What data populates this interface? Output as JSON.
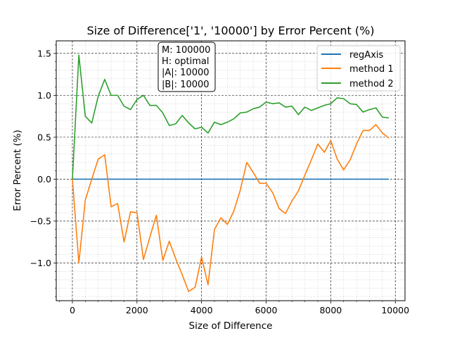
{
  "chart_data": {
    "type": "line",
    "title": "Size of Difference['1', '10000'] by Error Percent (%)",
    "xlabel": "Size of Difference",
    "ylabel": "Error Percent (%)",
    "xlim": [
      -500,
      10300
    ],
    "ylim": [
      -1.45,
      1.65
    ],
    "xticks": [
      0,
      2000,
      4000,
      6000,
      8000,
      10000
    ],
    "yticks": [
      -1.0,
      -0.5,
      0.0,
      0.5,
      1.0,
      1.5
    ],
    "xtick_labels": [
      "0",
      "2000",
      "4000",
      "6000",
      "8000",
      "10000"
    ],
    "ytick_labels": [
      "−1.0",
      "−0.5",
      "0.0",
      "0.5",
      "1.0",
      "1.5"
    ],
    "grid": true,
    "legend_position": "top-right",
    "annotation": [
      "M: 100000",
      "H: optimal",
      "|A|: 10000",
      "|B|: 10000"
    ],
    "x": [
      0,
      200,
      400,
      600,
      800,
      1000,
      1200,
      1400,
      1600,
      1800,
      2000,
      2200,
      2400,
      2600,
      2800,
      3000,
      3200,
      3400,
      3600,
      3800,
      4000,
      4200,
      4400,
      4600,
      4800,
      5000,
      5200,
      5400,
      5600,
      5800,
      6000,
      6200,
      6400,
      6600,
      6800,
      7000,
      7200,
      7400,
      7600,
      7800,
      8000,
      8200,
      8400,
      8600,
      8800,
      9000,
      9200,
      9400,
      9600,
      9800
    ],
    "series": [
      {
        "name": "regAxis",
        "color": "#1f77b4",
        "values": [
          0,
          0,
          0,
          0,
          0,
          0,
          0,
          0,
          0,
          0,
          0,
          0,
          0,
          0,
          0,
          0,
          0,
          0,
          0,
          0,
          0,
          0,
          0,
          0,
          0,
          0,
          0,
          0,
          0,
          0,
          0,
          0,
          0,
          0,
          0,
          0,
          0,
          0,
          0,
          0,
          0,
          0,
          0,
          0,
          0,
          0,
          0,
          0,
          0,
          0
        ]
      },
      {
        "name": "method 1",
        "color": "#ff7f0e",
        "values": [
          0.0,
          -1.0,
          -0.25,
          0.0,
          0.24,
          0.29,
          -0.33,
          -0.29,
          -0.75,
          -0.39,
          -0.4,
          -0.96,
          -0.69,
          -0.43,
          -0.97,
          -0.74,
          -0.95,
          -1.14,
          -1.34,
          -1.29,
          -0.93,
          -1.26,
          -0.6,
          -0.46,
          -0.54,
          -0.38,
          -0.13,
          0.2,
          0.08,
          -0.05,
          -0.05,
          -0.16,
          -0.35,
          -0.41,
          -0.26,
          -0.14,
          0.05,
          0.23,
          0.42,
          0.32,
          0.46,
          0.24,
          0.11,
          0.23,
          0.42,
          0.58,
          0.58,
          0.65,
          0.55,
          0.49
        ]
      },
      {
        "name": "method 2",
        "color": "#2ca02c",
        "values": [
          0.0,
          1.48,
          0.75,
          0.67,
          0.99,
          1.19,
          1.0,
          1.0,
          0.87,
          0.83,
          0.95,
          1.0,
          0.88,
          0.88,
          0.79,
          0.64,
          0.66,
          0.76,
          0.67,
          0.6,
          0.62,
          0.55,
          0.68,
          0.65,
          0.68,
          0.72,
          0.79,
          0.8,
          0.84,
          0.86,
          0.92,
          0.9,
          0.91,
          0.86,
          0.87,
          0.77,
          0.86,
          0.82,
          0.85,
          0.88,
          0.9,
          0.97,
          0.96,
          0.9,
          0.89,
          0.8,
          0.83,
          0.85,
          0.74,
          0.73
        ]
      }
    ]
  }
}
